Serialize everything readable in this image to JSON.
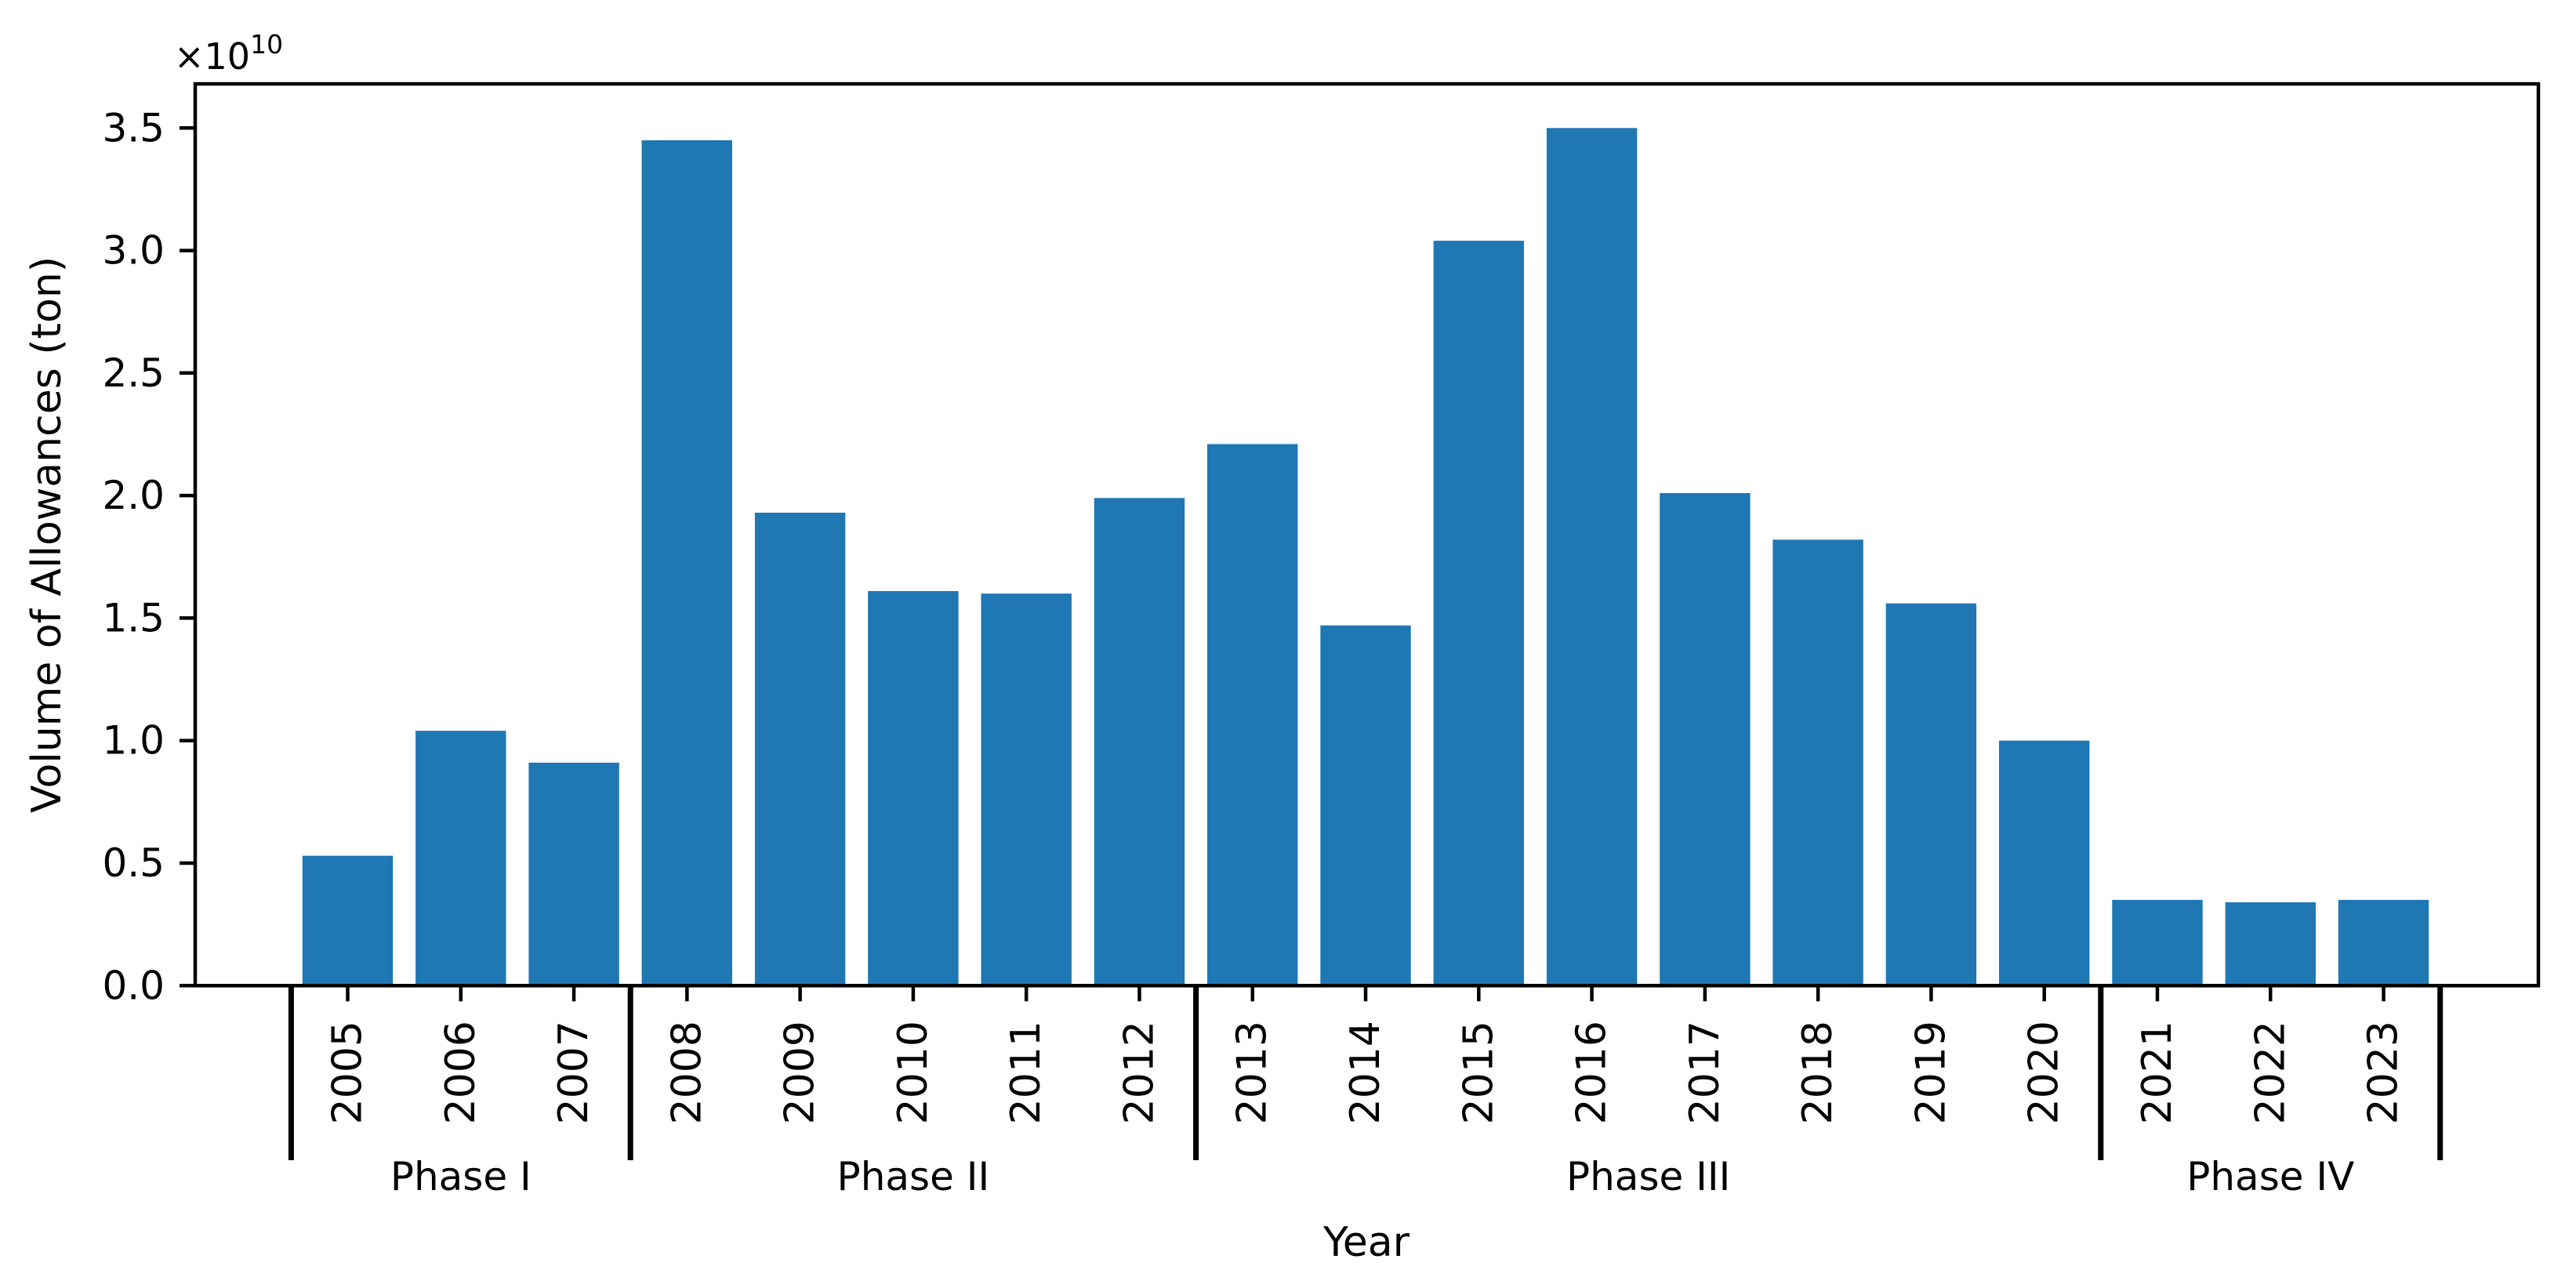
{
  "figure": {
    "background": "#ffffff",
    "text_color": "#000000"
  },
  "chart_data": {
    "type": "bar",
    "title": "",
    "xlabel": "Year",
    "ylabel": "Volume of Allowances (ton)",
    "units": "ton",
    "value_scale": "values are in units of 10^10 tons, matching the axis offset multiplier",
    "offset_text": {
      "base": "×10",
      "exponent": "10"
    },
    "categories": [
      "2005",
      "2006",
      "2007",
      "2008",
      "2009",
      "2010",
      "2011",
      "2012",
      "2013",
      "2014",
      "2015",
      "2016",
      "2017",
      "2018",
      "2019",
      "2020",
      "2021",
      "2022",
      "2023"
    ],
    "values": [
      0.53,
      1.04,
      0.91,
      3.45,
      1.93,
      1.61,
      1.6,
      1.99,
      2.21,
      1.47,
      3.04,
      3.5,
      2.01,
      1.82,
      1.56,
      1.0,
      0.35,
      0.34,
      0.35
    ],
    "bar_color": "#1f77b4",
    "ylim": [
      0,
      3.68
    ],
    "yticks": [
      0.0,
      0.5,
      1.0,
      1.5,
      2.0,
      2.5,
      3.0,
      3.5
    ],
    "ytick_labels": [
      "0.0",
      "0.5",
      "1.0",
      "1.5",
      "2.0",
      "2.5",
      "3.0",
      "3.5"
    ],
    "grid": false,
    "legend": null,
    "phases": [
      {
        "label": "Phase I",
        "start": "2005",
        "end": "2007"
      },
      {
        "label": "Phase II",
        "start": "2008",
        "end": "2012"
      },
      {
        "label": "Phase III",
        "start": "2013",
        "end": "2020"
      },
      {
        "label": "Phase IV",
        "start": "2021",
        "end": "2023"
      }
    ]
  }
}
